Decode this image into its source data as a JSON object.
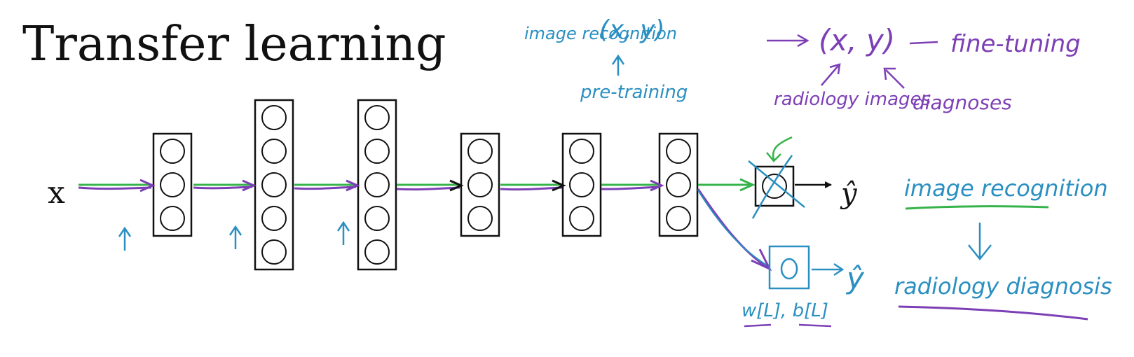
{
  "slide": {
    "title": "Transfer learning",
    "input_label": "x",
    "output_label": "ŷ",
    "new_output_label": "ŷ"
  },
  "network": {
    "layers": [
      {
        "name": "hidden-1",
        "units": 3
      },
      {
        "name": "hidden-2",
        "units": 5
      },
      {
        "name": "hidden-3",
        "units": 5
      },
      {
        "name": "hidden-4",
        "units": 3
      },
      {
        "name": "hidden-5",
        "units": 3
      },
      {
        "name": "hidden-6",
        "units": 3
      }
    ],
    "output_units": 1,
    "new_output_units": 1
  },
  "annotations": {
    "image_recognition_small": "image recognition",
    "xy_pretraining": "(x, y)",
    "pre_training": "pre-training",
    "xy_finetuning": "(x, y)",
    "fine_tuning": "fine-tuning",
    "radiology_images": "radiology images",
    "diagnoses": "diagnoses",
    "weights": "w[L], b[L]",
    "image_recognition": "image recognition",
    "radiology_diagnosis": "radiology diagnosis"
  },
  "colors": {
    "ink": "#111111",
    "blue": "#2a8fc1",
    "purple": "#7d3fb5",
    "green": "#36b34a"
  }
}
